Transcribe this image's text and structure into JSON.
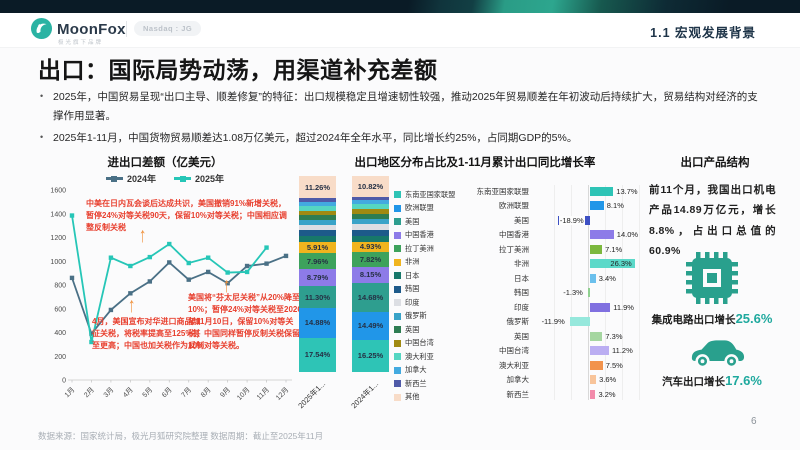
{
  "header": {
    "brand": "MoonFox",
    "tagline": "极光旗下品牌",
    "badge": "Nasdaq : JG",
    "section": "1.1 宏观发展背景"
  },
  "title": "出口：国际局势动荡，用渠道补充差额",
  "bullets": [
    "2025年，中国贸易呈现“出口主导、顺差修复”的特征：出口规模稳定且增速韧性较强，推动2025年贸易顺差在年初波动后持续扩大，贸易结构对经济的支撑作用显著。",
    "2025年1-11月，中国货物贸易顺差达1.08万亿美元，超过2024年全年水平，同比增长约25%，占同期GDP的5%。"
  ],
  "colors": {
    "accent_teal": "#1FA99E",
    "annotation_red": "#E8402F",
    "arrow_orange": "#F0933F"
  },
  "chart_data": [
    {
      "type": "line",
      "title": "进出口差额（亿美元）",
      "x": [
        "1月",
        "2月",
        "3月",
        "4月",
        "5月",
        "6月",
        "7月",
        "8月",
        "9月",
        "10月",
        "11月",
        "12月"
      ],
      "ylim": [
        0,
        1600
      ],
      "ytick_step": 200,
      "series": [
        {
          "name": "2024年",
          "color": "#4A7086",
          "values": [
            860,
            390,
            590,
            730,
            830,
            990,
            845,
            910,
            815,
            960,
            980,
            1045
          ]
        },
        {
          "name": "2025年",
          "color": "#26C6B7",
          "values": [
            1385,
            320,
            1030,
            960,
            1035,
            1145,
            985,
            1030,
            905,
            910,
            1115,
            null
          ]
        }
      ],
      "annotations": [
        {
          "text": "中美在日内瓦会谈后达成共识，美国撤销91%新增关税，暂停24%对等关税90天，保留10%对等关税；中国相应调整反制关税"
        },
        {
          "text": "4月，美国宣布对华进口商品加征关税，将税率提高至125%甚至更高；中国也加关税作为反制"
        },
        {
          "text": "美国将“芬太尼关税”从20%降至10%；暂停24%对等关税至2026年11月10日，保留10%对等关税；中国同样暂停反制关税保留10%对等关税。"
        }
      ]
    },
    {
      "type": "stacked-bar",
      "title": "出口地区分布占比及1-11月累计出口同比增长率",
      "unit": "%",
      "order_bottom_to_top": [
        "东南亚国家联盟",
        "欧洲联盟",
        "美国",
        "中国香港",
        "拉丁美洲",
        "非洲",
        "日本",
        "韩国",
        "印度",
        "俄罗斯",
        "英国",
        "中国台湾",
        "澳大利亚",
        "加拿大",
        "新西兰",
        "其他"
      ],
      "colors": {
        "东南亚国家联盟": "#2EC4B6",
        "欧洲联盟": "#2196E8",
        "美国": "#2E9E8F",
        "中国香港": "#8D7BE8",
        "拉丁美洲": "#3DA25C",
        "非洲": "#F0B41E",
        "日本": "#17786A",
        "韩国": "#1D5A8A",
        "印度": "#DCDEE3",
        "俄罗斯": "#39A3C8",
        "英国": "#2E7D52",
        "中国台湾": "#A08A12",
        "澳大利亚": "#55D6C2",
        "加拿大": "#43AAE0",
        "新西兰": "#4F5AA8",
        "其他": "#F8DCC8"
      },
      "labeled_threshold": 4.5,
      "note": "未标注的细分段数值为按图形估算",
      "bars": [
        {
          "label": "2025年1...",
          "values": {
            "东南亚国家联盟": 17.54,
            "欧洲联盟": 14.88,
            "美国": 11.3,
            "中国香港": 8.79,
            "拉丁美洲": 7.96,
            "非洲": 5.91,
            "日本": 3.0,
            "韩国": 2.9,
            "印度": 2.8,
            "俄罗斯": 2.6,
            "英国": 2.4,
            "中国台湾": 2.3,
            "澳大利亚": 2.5,
            "加拿大": 2.0,
            "新西兰": 1.86,
            "其他": 11.26
          }
        },
        {
          "label": "2024年1...",
          "values": {
            "东南亚国家联盟": 16.25,
            "欧洲联盟": 14.49,
            "美国": 14.68,
            "中国香港": 8.15,
            "拉丁美洲": 7.82,
            "非洲": 4.93,
            "日本": 3.1,
            "韩国": 3.0,
            "印度": 2.9,
            "俄罗斯": 2.7,
            "英国": 2.5,
            "中国台湾": 2.4,
            "澳大利亚": 2.6,
            "加拿大": 2.1,
            "新西兰": 1.56,
            "其他": 10.82
          }
        }
      ]
    },
    {
      "type": "bar-horizontal",
      "title": "1-11月累计出口同比增长率",
      "xgrid": [
        -20,
        -10,
        0,
        10,
        20,
        30
      ],
      "rows": [
        {
          "label": "东南亚国家联盟",
          "value": 13.7,
          "color": "#2EC4B6"
        },
        {
          "label": "欧洲联盟",
          "value": 8.1,
          "color": "#2196E8"
        },
        {
          "label": "美国",
          "value": -18.9,
          "color": "#3D50C3",
          "label_inside": true
        },
        {
          "label": "中国香港",
          "value": 14.0,
          "color": "#8D7BE8"
        },
        {
          "label": "拉丁美洲",
          "value": 7.1,
          "color": "#7CB83E"
        },
        {
          "label": "非洲",
          "value": 26.3,
          "color": "#5CD9C9",
          "label_inside": true
        },
        {
          "label": "日本",
          "value": 3.4,
          "color": "#6BC0ED"
        },
        {
          "label": "韩国",
          "value": -1.3,
          "color": "#8FD08F"
        },
        {
          "label": "印度",
          "value": 11.9,
          "color": "#8070E0"
        },
        {
          "label": "俄罗斯",
          "value": -11.9,
          "color": "#96E8DC"
        },
        {
          "label": "英国",
          "value": 7.3,
          "color": "#A5D6A0"
        },
        {
          "label": "中国台湾",
          "value": 11.2,
          "color": "#BBAEF2"
        },
        {
          "label": "澳大利亚",
          "value": 7.5,
          "color": "#F2934C"
        },
        {
          "label": "加拿大",
          "value": 3.6,
          "color": "#F8C49A"
        },
        {
          "label": "新西兰",
          "value": 3.2,
          "color": "#F28BAB"
        }
      ]
    }
  ],
  "product": {
    "title": "出口产品结构",
    "paragraph": "前11个月，我国出口机电产品14.89万亿元，增长8.8%，占出口总值的60.9%",
    "items": [
      {
        "icon": "chip-icon",
        "label": "集成电路出口增长",
        "value": "25.6%"
      },
      {
        "icon": "car-icon",
        "label": "汽车出口增长",
        "value": "17.6%"
      }
    ]
  },
  "footer": {
    "source": "数据来源：国家统计局，极光月狐研究院整理 数据周期：截止至2025年11月",
    "page": "6"
  }
}
